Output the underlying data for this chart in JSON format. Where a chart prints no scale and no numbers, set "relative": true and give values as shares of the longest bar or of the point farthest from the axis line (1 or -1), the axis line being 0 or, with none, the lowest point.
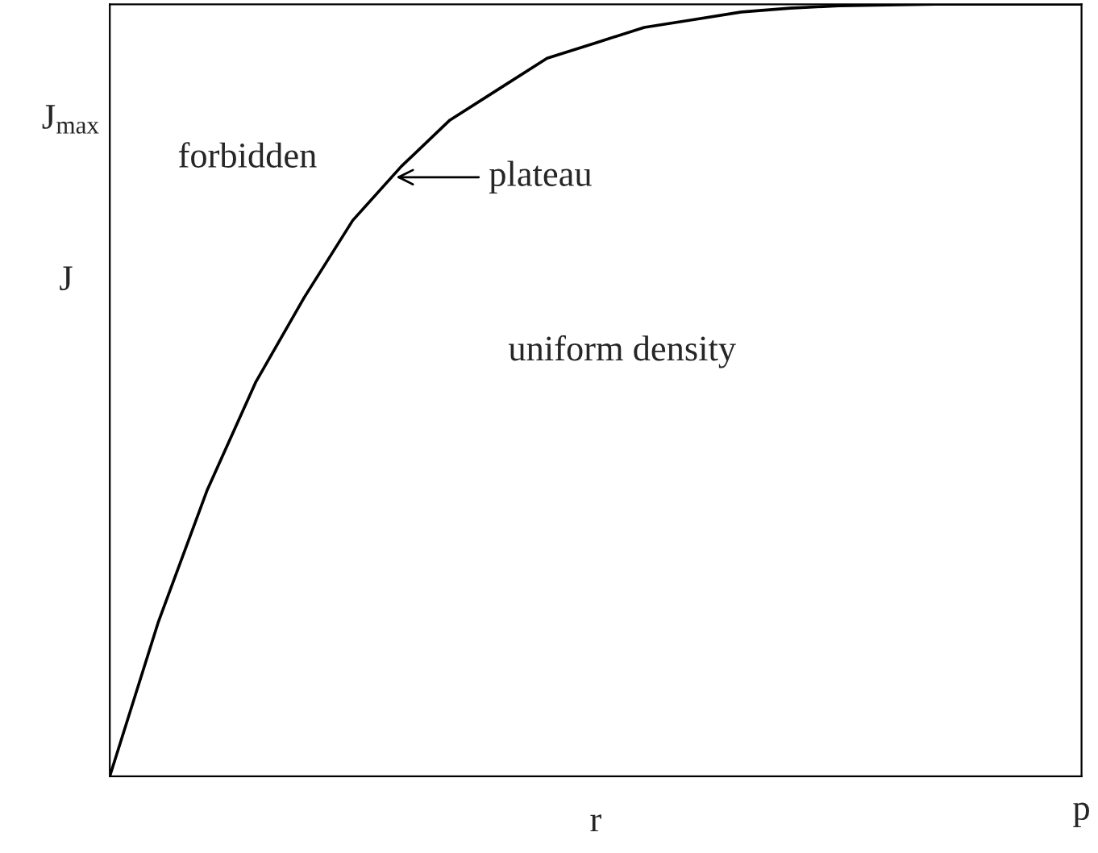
{
  "chart_data": {
    "type": "line",
    "relative": true,
    "xlabel": "r",
    "ylabel": "J",
    "categories": [
      null,
      null,
      null,
      null,
      null,
      null,
      null,
      null,
      null,
      null,
      null,
      null,
      null,
      null,
      null,
      null,
      null,
      null,
      null,
      null,
      null
    ],
    "series": [
      {
        "color": "#000000",
        "values": [
          0,
          0.2,
          0.37,
          0.51,
          0.62,
          0.72,
          0.79,
          0.85,
          0.89,
          0.93,
          0.95,
          0.97,
          0.98,
          0.99,
          0.995,
          0.998,
          0.999,
          1.0,
          1.0,
          1.0,
          1.0
        ]
      }
    ],
    "annotations": [
      "J$_{max}$",
      "p",
      "forbidden",
      "plateau",
      "uniform density"
    ],
    "legend": false,
    "marker": "none",
    "line_style": "solid"
  }
}
